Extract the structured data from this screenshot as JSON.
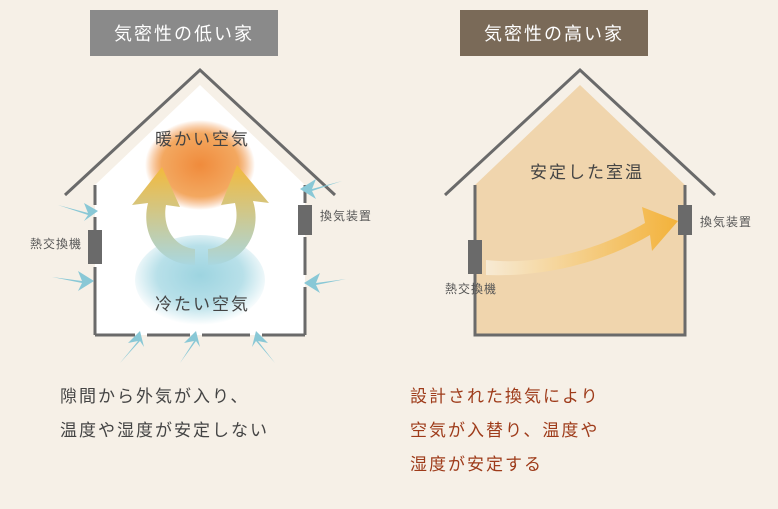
{
  "left": {
    "title": "気密性の低い家",
    "title_bg": "#8a8a8a",
    "warm_air_label": "暖かい空気",
    "cold_air_label": "冷たい空気",
    "device_left_label": "熱交換機",
    "device_right_label": "換気装置",
    "caption": "隙間から外気が入り、\n温度や湿度が安定しない",
    "caption_color": "#444444",
    "house_stroke": "#6a6a6a",
    "house_stroke_width": 3,
    "interior_fill": "#ffffff",
    "warm_gradient": {
      "inner": "#f08b3c",
      "outer": "rgba(240,139,60,0)"
    },
    "cold_gradient": {
      "inner": "#7fc8dc",
      "outer": "rgba(127,200,220,0)"
    },
    "arrow_curl_color_start": "#a9d7e0",
    "arrow_curl_color_end": "#f3b93c",
    "draft_arrow_color": "#89c8d6"
  },
  "right": {
    "title": "気密性の高い家",
    "title_bg": "#7a6a58",
    "stable_label": "安定した室温",
    "device_left_label": "熱交換機",
    "device_right_label": "換気装置",
    "caption": "設計された換気により\n空気が入替り、温度や\n湿度が安定する",
    "caption_color": "#9e3b1a",
    "house_stroke": "#6a6a6a",
    "house_stroke_width": 3,
    "interior_fill": "#f0d5ad",
    "flow_gradient_start": "#f7ead4",
    "flow_gradient_end": "#f3b23a"
  },
  "background_color": "#f6f0e7",
  "device_box_color": "#6a6a6a",
  "label_fontsize": 17,
  "title_fontsize": 18,
  "device_label_fontsize": 12
}
